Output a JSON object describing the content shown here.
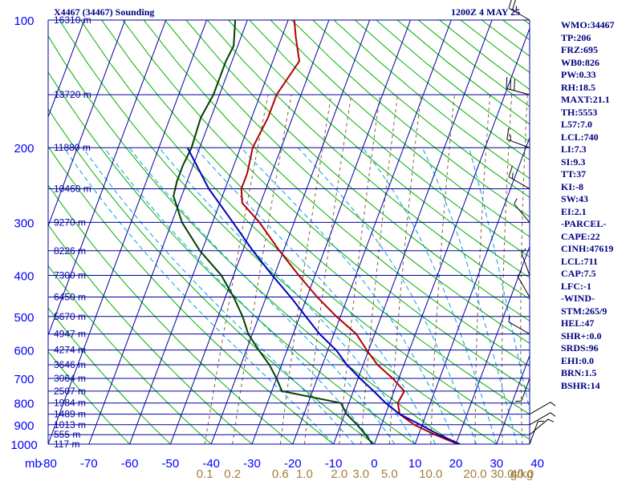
{
  "header": {
    "station_title": "X4467 (34467) Sounding",
    "valid_time": "1200Z  4 MAY 25"
  },
  "indices": [
    "WMO:34467",
    "TP:206",
    "FRZ:695",
    "WB0:826",
    "PW:0.33",
    "RH:18.5",
    "MAXT:21.1",
    "TH:5553",
    "L57:7.0",
    "LCL:740",
    "LI:7.3",
    "SI:9.3",
    "TT:37",
    "KI:-8",
    "SW:43",
    "EI:2.1",
    "-PARCEL-",
    "CAPE:22",
    "CINH:47619",
    "LCL:711",
    "CAP:7.5",
    "LFC:-1",
    "-WIND-",
    "STM:265/9",
    "HEL:47",
    "SHR+:0.0",
    "SRDS:96",
    "EHI:0.0",
    "BRN:1.5",
    "BSHR:14"
  ],
  "colors": {
    "axis_text": "#0000ff",
    "grid": "#0000a0",
    "dry_adiabat": "#00b000",
    "mixing_ratio": "#806040",
    "moist_adiabat": "#00a0e0",
    "temperature": "#b00000",
    "dewpoint": "#004000",
    "parcel": "#0000c0",
    "wind_barb": "#000000",
    "header_text": "#000080"
  },
  "chart_data": {
    "type": "line",
    "subtype": "skew-T log-P sounding",
    "pressure_axis_unit": "mb",
    "temperature_axis_unit": "C",
    "pressure_ticks": [
      100,
      200,
      300,
      400,
      500,
      600,
      700,
      800,
      900,
      1000
    ],
    "temperature_ticks": [
      -80,
      -70,
      -60,
      -50,
      -40,
      -30,
      -20,
      -10,
      0,
      10,
      20,
      30,
      40
    ],
    "ylim": [
      1000,
      100
    ],
    "xlim": [
      -80,
      43
    ],
    "height_labels": [
      {
        "p": 100,
        "label": "16310 m"
      },
      {
        "p": 150,
        "label": "13720 m"
      },
      {
        "p": 200,
        "label": "11880 m"
      },
      {
        "p": 250,
        "label": "10460 m"
      },
      {
        "p": 300,
        "label": "9270 m"
      },
      {
        "p": 350,
        "label": "8226 m"
      },
      {
        "p": 400,
        "label": "7300 m"
      },
      {
        "p": 450,
        "label": "6450 m"
      },
      {
        "p": 500,
        "label": "5670 m"
      },
      {
        "p": 550,
        "label": "4947 m"
      },
      {
        "p": 600,
        "label": "4274 m"
      },
      {
        "p": 650,
        "label": "3646 m"
      },
      {
        "p": 700,
        "label": "3064 m"
      },
      {
        "p": 750,
        "label": "2507 m"
      },
      {
        "p": 800,
        "label": "1984 m"
      },
      {
        "p": 850,
        "label": "1489 m"
      },
      {
        "p": 900,
        "label": "1013 m"
      },
      {
        "p": 950,
        "label": "555 m"
      },
      {
        "p": 1000,
        "label": "117 m"
      }
    ],
    "mixing_ratio_labels": [
      {
        "w": 0.1,
        "label": "0.1"
      },
      {
        "w": 0.2,
        "label": "0.2"
      },
      {
        "w": 0.6,
        "label": "0.6"
      },
      {
        "w": 1.0,
        "label": "1.0"
      },
      {
        "w": 2.0,
        "label": "2.0"
      },
      {
        "w": 3.0,
        "label": "3.0"
      },
      {
        "w": 5.0,
        "label": "5.0"
      },
      {
        "w": 10.0,
        "label": "10.0"
      },
      {
        "w": 20.0,
        "label": "20.0"
      },
      {
        "w": 30.0,
        "label": "30.0"
      },
      {
        "w": 40.0,
        "label": "40.0"
      }
    ],
    "mixing_ratio_unit": "g/kg",
    "series": [
      {
        "key": "temperature",
        "points": [
          [
            1000,
            20.5
          ],
          [
            950,
            14.0
          ],
          [
            900,
            8.0
          ],
          [
            850,
            3.5
          ],
          [
            800,
            2.0
          ],
          [
            750,
            2.5
          ],
          [
            700,
            -1.5
          ],
          [
            650,
            -6.5
          ],
          [
            600,
            -10.5
          ],
          [
            550,
            -14.5
          ],
          [
            500,
            -21.0
          ],
          [
            450,
            -27.5
          ],
          [
            400,
            -34.0
          ],
          [
            350,
            -41.0
          ],
          [
            300,
            -48.5
          ],
          [
            270,
            -54.5
          ],
          [
            250,
            -56.0
          ],
          [
            230,
            -56.0
          ],
          [
            200,
            -57.0
          ],
          [
            170,
            -56.0
          ],
          [
            150,
            -56.0
          ],
          [
            125,
            -53.5
          ],
          [
            110,
            -56.5
          ],
          [
            100,
            -58.5
          ]
        ]
      },
      {
        "key": "dewpoint",
        "points": [
          [
            1000,
            -0.5
          ],
          [
            950,
            -3.0
          ],
          [
            900,
            -6.0
          ],
          [
            850,
            -9.5
          ],
          [
            800,
            -12.0
          ],
          [
            750,
            -27.5
          ],
          [
            700,
            -30.0
          ],
          [
            650,
            -33.0
          ],
          [
            600,
            -37.0
          ],
          [
            550,
            -41.0
          ],
          [
            500,
            -44.0
          ],
          [
            450,
            -48.0
          ],
          [
            400,
            -53.0
          ],
          [
            350,
            -60.5
          ],
          [
            300,
            -67.5
          ],
          [
            260,
            -72.0
          ],
          [
            240,
            -72.5
          ],
          [
            220,
            -72.5
          ],
          [
            200,
            -72.0
          ],
          [
            170,
            -72.5
          ],
          [
            150,
            -71.5
          ],
          [
            125,
            -71.5
          ],
          [
            115,
            -71.0
          ],
          [
            100,
            -73.0
          ]
        ]
      },
      {
        "key": "parcel",
        "points": [
          [
            1000,
            21.0
          ],
          [
            950,
            15.0
          ],
          [
            900,
            9.5
          ],
          [
            850,
            3.5
          ],
          [
            800,
            -1.0
          ],
          [
            750,
            -5.0
          ],
          [
            700,
            -9.5
          ],
          [
            650,
            -14.0
          ],
          [
            600,
            -18.0
          ],
          [
            550,
            -23.5
          ],
          [
            500,
            -28.5
          ],
          [
            450,
            -34.0
          ],
          [
            400,
            -40.5
          ],
          [
            350,
            -47.5
          ],
          [
            300,
            -55.0
          ],
          [
            250,
            -64.0
          ],
          [
            200,
            -73.0
          ]
        ]
      }
    ],
    "wind_barbs": [
      {
        "p": 100,
        "dir": 300,
        "speed": 25
      },
      {
        "p": 150,
        "dir": 285,
        "speed": 30
      },
      {
        "p": 200,
        "dir": 290,
        "speed": 15
      },
      {
        "p": 250,
        "dir": 300,
        "speed": 15
      },
      {
        "p": 300,
        "dir": 320,
        "speed": 5
      },
      {
        "p": 400,
        "dir": 340,
        "speed": 5
      },
      {
        "p": 450,
        "dir": 330,
        "speed": 5
      },
      {
        "p": 550,
        "dir": 300,
        "speed": 5
      },
      {
        "p": 700,
        "dir": 200,
        "speed": 5
      },
      {
        "p": 850,
        "dir": 60,
        "speed": 5
      },
      {
        "p": 900,
        "dir": 60,
        "speed": 5
      },
      {
        "p": 950,
        "dir": 50,
        "speed": 5
      },
      {
        "p": 1000,
        "dir": 20,
        "speed": 5
      }
    ]
  }
}
